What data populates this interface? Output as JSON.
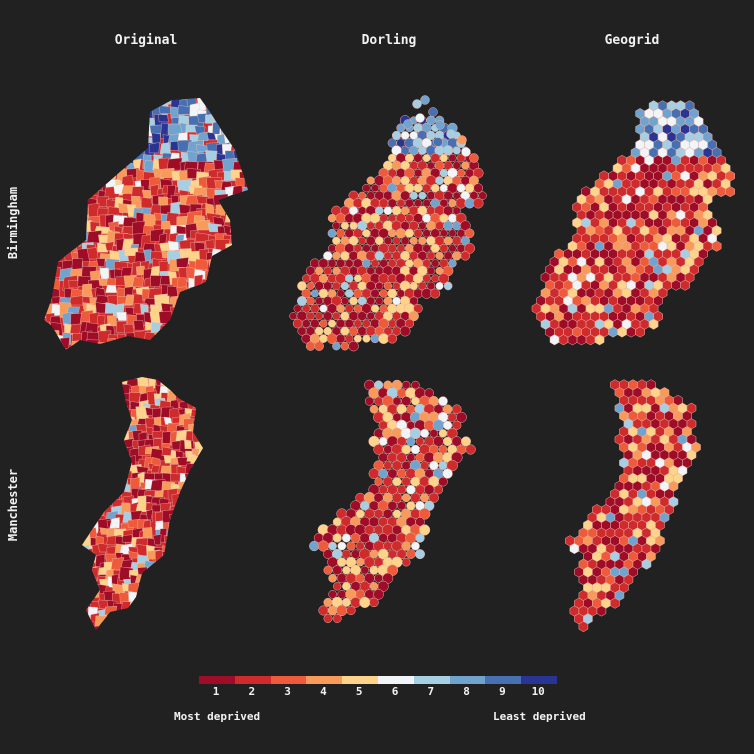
{
  "columns": [
    "Original",
    "Dorling",
    "Geogrid"
  ],
  "rows": [
    "Birmingham",
    "Manchester"
  ],
  "legend": {
    "ticks": [
      "1",
      "2",
      "3",
      "4",
      "5",
      "6",
      "7",
      "8",
      "9",
      "10"
    ],
    "low_label": "Most deprived",
    "high_label": "Least deprived"
  },
  "palette": [
    "#9e0c27",
    "#cf2a2c",
    "#ee5b3b",
    "#f89a5a",
    "#fed38a",
    "#f2f5f8",
    "#a6cfe4",
    "#70a4cf",
    "#4670b2",
    "#2a3593"
  ]
}
